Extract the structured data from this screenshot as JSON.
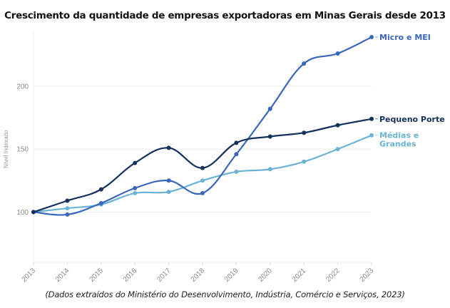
{
  "chart_data": {
    "type": "line",
    "title": "Crescimento da quantidade de empresas exportadoras em Minas Gerais desde 2013",
    "caption": "(Dados extraídos do Ministério do Desenvolvimento, Indústria, Comércio e Serviços, 2023)",
    "xlabel": "",
    "ylabel": "Nível Indexado",
    "x": [
      "2013",
      "2014",
      "2015",
      "2016",
      "2017",
      "2018",
      "2019",
      "2020",
      "2021",
      "2022",
      "2023"
    ],
    "ylim": [
      60,
      243
    ],
    "yticks": [
      100,
      150,
      200
    ],
    "grid": true,
    "legend": "direct labels at line ends (right)",
    "series": [
      {
        "name": "Micro e MEI",
        "label_lines": [
          "Micro e MEI"
        ],
        "color": "#3a67be",
        "values": [
          100,
          98,
          107,
          119,
          125,
          115,
          146,
          182,
          218,
          226,
          239
        ]
      },
      {
        "name": "Pequeno Porte",
        "label_lines": [
          "Pequeno Porte"
        ],
        "color": "#13305e",
        "values": [
          100,
          109,
          118,
          139,
          151,
          135,
          155,
          160,
          163,
          169,
          174
        ]
      },
      {
        "name": "Médias e Grandes",
        "label_lines": [
          "Médias e",
          "Grandes"
        ],
        "color": "#6ab3d6",
        "values": [
          100,
          103,
          106,
          115,
          116,
          125,
          132,
          134,
          140,
          150,
          161
        ]
      }
    ]
  }
}
